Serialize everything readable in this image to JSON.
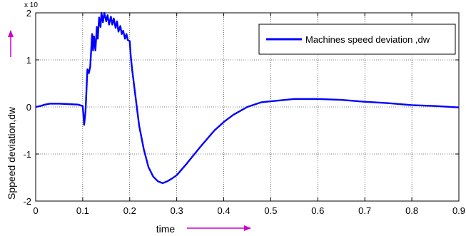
{
  "chart_data": {
    "type": "line",
    "title": "",
    "xlabel": "time",
    "ylabel": "Sppeed deviation,dw",
    "exponent_label": "x 10",
    "xlim": [
      0,
      0.9
    ],
    "ylim": [
      -2,
      2
    ],
    "xticks": [
      0,
      0.1,
      0.2,
      0.3,
      0.4,
      0.5,
      0.6,
      0.7,
      0.8,
      0.9
    ],
    "xtick_labels": [
      "0",
      "0.1",
      "0.2",
      "0.3",
      "0.4",
      "0.5",
      "0.6",
      "0.7",
      "0.8",
      "0.9"
    ],
    "yticks": [
      -2,
      -1,
      0,
      1,
      2
    ],
    "ytick_labels": [
      "-2",
      "-1",
      "0",
      "1",
      "2"
    ],
    "grid": true,
    "legend_position": "top-right",
    "series": [
      {
        "name": "Machines speed deviation ,dw",
        "color": "#0000ff",
        "x": [
          0,
          0.01,
          0.02,
          0.03,
          0.05,
          0.07,
          0.09,
          0.1,
          0.103,
          0.106,
          0.11,
          0.113,
          0.116,
          0.12,
          0.122,
          0.124,
          0.127,
          0.13,
          0.132,
          0.135,
          0.138,
          0.14,
          0.143,
          0.146,
          0.15,
          0.153,
          0.156,
          0.16,
          0.163,
          0.166,
          0.17,
          0.173,
          0.176,
          0.18,
          0.183,
          0.186,
          0.19,
          0.193,
          0.196,
          0.2,
          0.202,
          0.205,
          0.21,
          0.215,
          0.22,
          0.23,
          0.24,
          0.25,
          0.26,
          0.27,
          0.28,
          0.29,
          0.3,
          0.32,
          0.35,
          0.38,
          0.4,
          0.42,
          0.45,
          0.48,
          0.5,
          0.55,
          0.6,
          0.65,
          0.7,
          0.75,
          0.8,
          0.85,
          0.9
        ],
        "y": [
          0,
          0.02,
          0.05,
          0.07,
          0.07,
          0.06,
          0.05,
          0.02,
          -0.38,
          -0.1,
          0.8,
          0.72,
          0.85,
          1.55,
          1.2,
          1.5,
          1.2,
          1.7,
          1.45,
          1.9,
          1.7,
          2.0,
          1.8,
          2.0,
          1.82,
          1.95,
          1.75,
          1.92,
          1.75,
          1.88,
          1.68,
          1.82,
          1.6,
          1.72,
          1.55,
          1.62,
          1.45,
          1.55,
          1.42,
          1.4,
          1.1,
          0.8,
          0.4,
          0.0,
          -0.4,
          -0.9,
          -1.28,
          -1.48,
          -1.58,
          -1.62,
          -1.58,
          -1.52,
          -1.45,
          -1.22,
          -0.85,
          -0.5,
          -0.32,
          -0.17,
          0.0,
          0.1,
          0.12,
          0.17,
          0.17,
          0.15,
          0.11,
          0.08,
          0.04,
          0.02,
          -0.01
        ]
      }
    ]
  }
}
